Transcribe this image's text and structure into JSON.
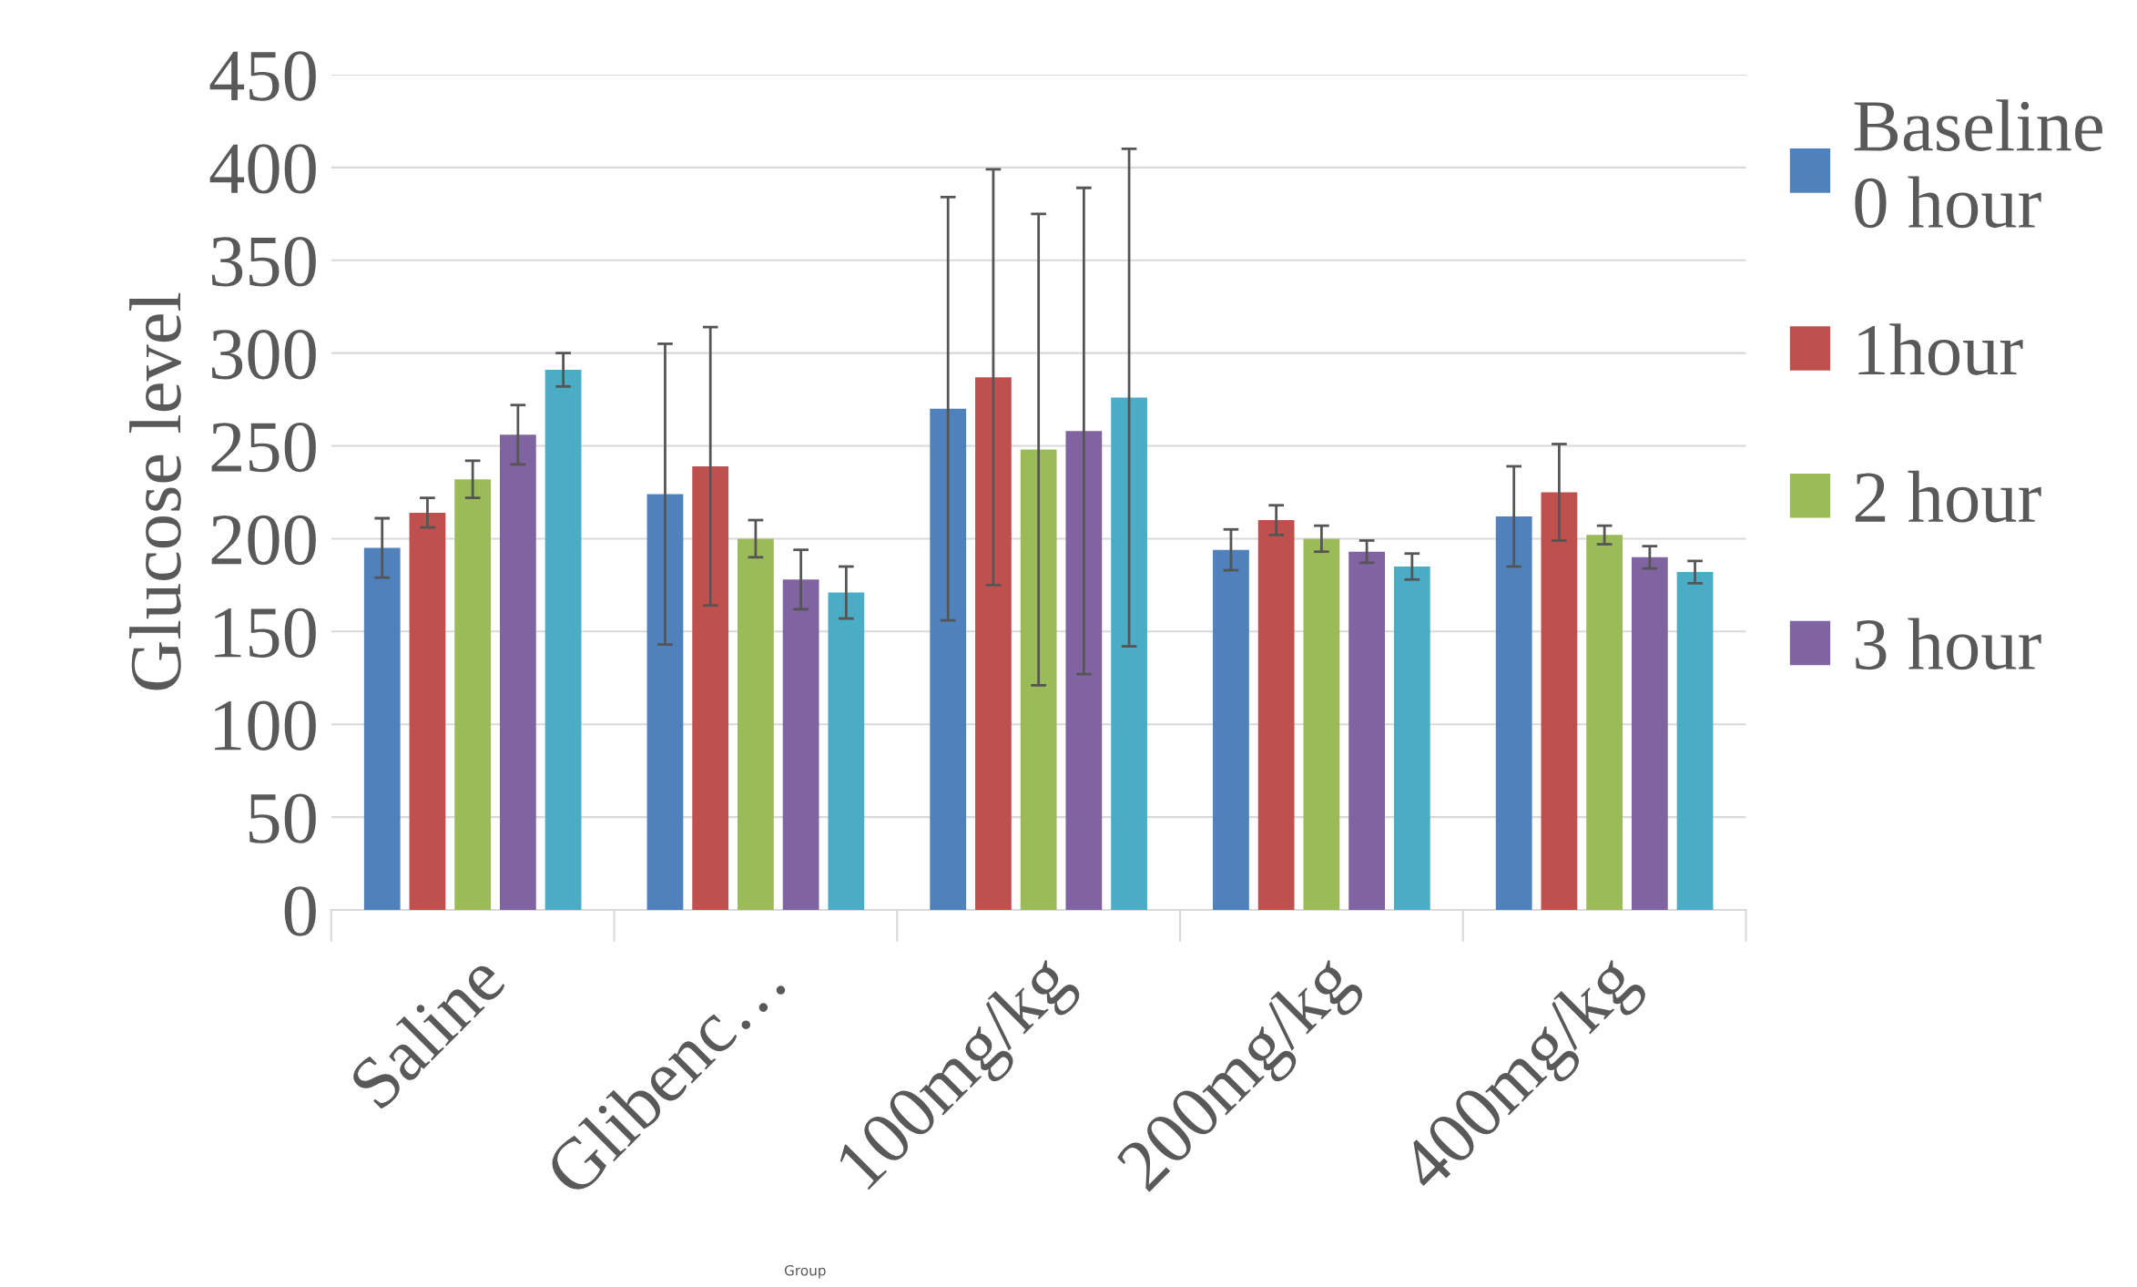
{
  "chart_data": {
    "type": "bar",
    "xlabel": "Group",
    "ylabel": "Glucose level",
    "categories": [
      "Saline",
      "Glibenc…",
      "100mg/kg",
      "200mg/kg",
      "400mg/kg"
    ],
    "series": [
      {
        "name": "Baseline\n0 hour",
        "color": "#4f81bd",
        "values": [
          195,
          224,
          270,
          194,
          212
        ],
        "errors": [
          16,
          81,
          114,
          11,
          27
        ]
      },
      {
        "name": "1hour",
        "color": "#c0504d",
        "values": [
          214,
          239,
          287,
          210,
          225
        ],
        "errors": [
          8,
          75,
          112,
          8,
          26
        ]
      },
      {
        "name": "2 hour",
        "color": "#9bbb59",
        "values": [
          232,
          200,
          248,
          200,
          202
        ],
        "errors": [
          10,
          10,
          127,
          7,
          5
        ]
      },
      {
        "name": "3 hour",
        "color": "#8064a2",
        "values": [
          256,
          178,
          258,
          193,
          190
        ],
        "errors": [
          16,
          16,
          131,
          6,
          6
        ]
      },
      {
        "color": "#4bacc6",
        "values": [
          291,
          171,
          276,
          185,
          182
        ],
        "errors": [
          9,
          14,
          134,
          7,
          6
        ]
      }
    ],
    "ylim": [
      0,
      450
    ],
    "yticks": [
      0,
      50,
      100,
      150,
      200,
      250,
      300,
      350,
      400,
      450
    ],
    "grid": "y",
    "legend": "right"
  }
}
